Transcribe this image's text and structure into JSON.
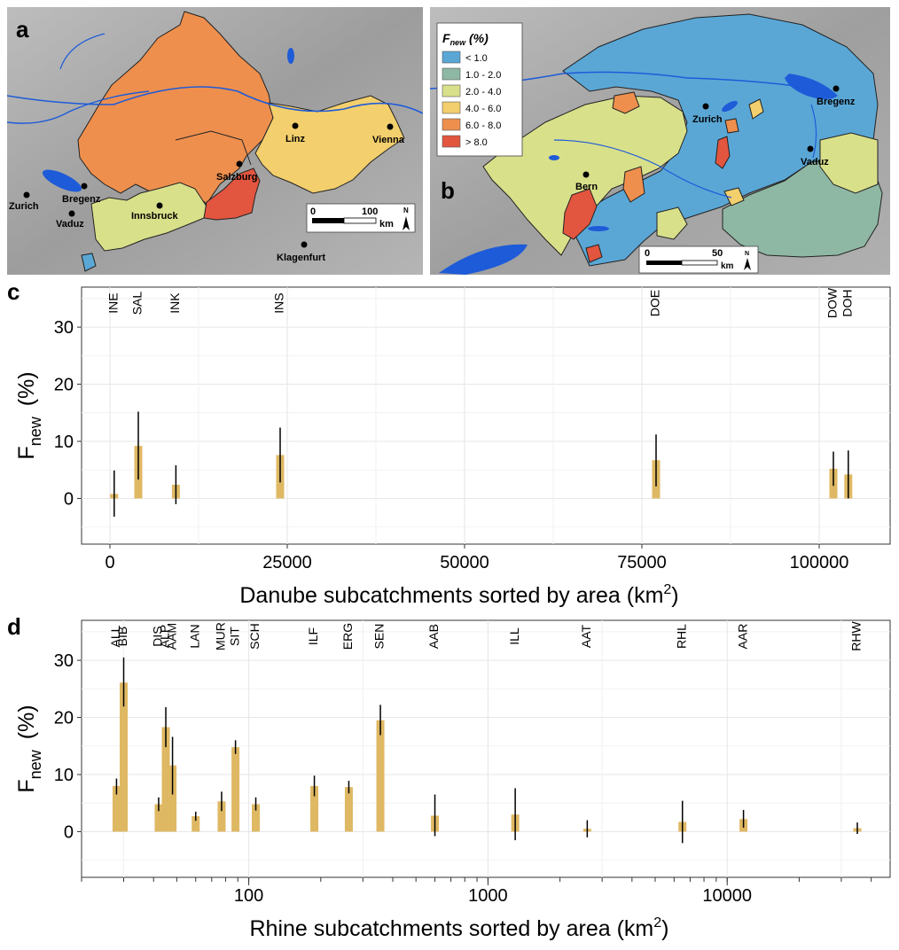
{
  "panels": {
    "a": {
      "letter": "a"
    },
    "b": {
      "letter": "b"
    },
    "c": {
      "letter": "c"
    },
    "d": {
      "letter": "d"
    }
  },
  "map_a": {
    "cities": [
      "Zurich",
      "Bregenz",
      "Vaduz",
      "Innsbruck",
      "Salzburg",
      "Linz",
      "Vienna",
      "Klagenfurt"
    ],
    "scale": {
      "zero": "0",
      "max": "100",
      "unit": "km"
    },
    "north": "N",
    "colors": {
      "water": "#1e5bd8",
      "terrain": "#a9a9a9"
    }
  },
  "map_b": {
    "cities": [
      "Bregenz",
      "Zurich",
      "Vaduz",
      "Bern"
    ],
    "scale": {
      "zero": "0",
      "max": "50",
      "unit": "km"
    },
    "north": "N",
    "legend": {
      "title_main": "F",
      "title_sub": "new",
      "title_unit": " (%)",
      "items": [
        {
          "label": "< 1.0",
          "color": "#5aa7d6"
        },
        {
          "label": "1.0 - 2.0",
          "color": "#8fb8a4"
        },
        {
          "label": "2.0 - 4.0",
          "color": "#d9e08a"
        },
        {
          "label": "4.0 - 6.0",
          "color": "#f3cf6d"
        },
        {
          "label": "6.0 - 8.0",
          "color": "#ee8f4e"
        },
        {
          "label": "> 8.0",
          "color": "#e2553f"
        }
      ]
    }
  },
  "chart_data": [
    {
      "type": "bar",
      "panel": "c",
      "xscale": "linear",
      "xlim": [
        -4000,
        110000
      ],
      "ylim": [
        -8,
        37
      ],
      "xticks": [
        0,
        25000,
        50000,
        75000,
        100000
      ],
      "xtick_labels": [
        "0",
        "25000",
        "50000",
        "75000",
        "100000"
      ],
      "yticks": [
        0,
        10,
        20,
        30
      ],
      "ytick_labels": [
        "0",
        "10",
        "20",
        "30"
      ],
      "ylabel_main": "F",
      "ylabel_sub": "new",
      "ylabel_unit": "(%)",
      "xlabel_main": "Danube subcatchments sorted by area (km",
      "xlabel_sup": "2",
      "xlabel_end": ")",
      "bar_color": "#dfb863",
      "grid": true,
      "bars": [
        {
          "label": "INE",
          "x": 600,
          "value": 0.8,
          "low": -3.2,
          "high": 4.9
        },
        {
          "label": "SAL",
          "x": 4000,
          "value": 9.2,
          "low": 3.3,
          "high": 15.2
        },
        {
          "label": "INK",
          "x": 9300,
          "value": 2.4,
          "low": -1.0,
          "high": 5.8
        },
        {
          "label": "INS",
          "x": 24000,
          "value": 7.6,
          "low": 2.8,
          "high": 12.4
        },
        {
          "label": "DOE",
          "x": 77000,
          "value": 6.7,
          "low": 2.1,
          "high": 11.2
        },
        {
          "label": "DOW",
          "x": 102000,
          "value": 5.2,
          "low": 2.2,
          "high": 8.2
        },
        {
          "label": "DOH",
          "x": 104100,
          "value": 4.2,
          "low": 0.0,
          "high": 8.4
        }
      ]
    },
    {
      "type": "bar",
      "panel": "d",
      "xscale": "log",
      "xlim": [
        20,
        48000
      ],
      "ylim": [
        -8,
        37
      ],
      "xticks": [
        100,
        1000,
        10000
      ],
      "xtick_labels": [
        "100",
        "1000",
        "10000"
      ],
      "yticks": [
        0,
        10,
        20,
        30
      ],
      "ytick_labels": [
        "0",
        "10",
        "20",
        "30"
      ],
      "ylabel_main": "F",
      "ylabel_sub": "new",
      "ylabel_unit": "(%)",
      "xlabel_main": "Rhine subcatchments sorted by area (km",
      "xlabel_sup": "2",
      "xlabel_end": ")",
      "bar_color": "#dfb863",
      "grid": true,
      "bars": [
        {
          "label": "ALL",
          "x": 28,
          "value": 8.0,
          "low": 6.5,
          "high": 9.3
        },
        {
          "label": "BIB",
          "x": 30,
          "value": 26.1,
          "low": 21.9,
          "high": 30.5
        },
        {
          "label": "DIS",
          "x": 42,
          "value": 4.8,
          "low": 3.6,
          "high": 6.0
        },
        {
          "label": "ALP",
          "x": 45,
          "value": 18.3,
          "low": 14.8,
          "high": 21.8
        },
        {
          "label": "AAM",
          "x": 48,
          "value": 11.6,
          "low": 6.5,
          "high": 16.6
        },
        {
          "label": "LAN",
          "x": 60,
          "value": 2.7,
          "low": 1.9,
          "high": 3.5
        },
        {
          "label": "MUR",
          "x": 77,
          "value": 5.3,
          "low": 3.6,
          "high": 7.0
        },
        {
          "label": "SIT",
          "x": 88,
          "value": 14.8,
          "low": 13.6,
          "high": 16.0
        },
        {
          "label": "SCH",
          "x": 107,
          "value": 4.8,
          "low": 3.7,
          "high": 6.0
        },
        {
          "label": "ILF",
          "x": 188,
          "value": 8.0,
          "low": 6.2,
          "high": 9.8
        },
        {
          "label": "ERG",
          "x": 262,
          "value": 7.8,
          "low": 6.7,
          "high": 8.9
        },
        {
          "label": "SEN",
          "x": 355,
          "value": 19.5,
          "low": 16.9,
          "high": 22.2
        },
        {
          "label": "AAB",
          "x": 600,
          "value": 2.8,
          "low": -0.8,
          "high": 6.5
        },
        {
          "label": "ILL",
          "x": 1300,
          "value": 3.0,
          "low": -1.5,
          "high": 7.6
        },
        {
          "label": "AAT",
          "x": 2600,
          "value": 0.5,
          "low": -1.0,
          "high": 2.0
        },
        {
          "label": "RHL",
          "x": 6500,
          "value": 1.7,
          "low": -2.0,
          "high": 5.4
        },
        {
          "label": "AAR",
          "x": 11700,
          "value": 2.2,
          "low": 0.7,
          "high": 3.8
        },
        {
          "label": "RHW",
          "x": 35000,
          "value": 0.6,
          "low": -0.4,
          "high": 1.6
        }
      ]
    }
  ]
}
